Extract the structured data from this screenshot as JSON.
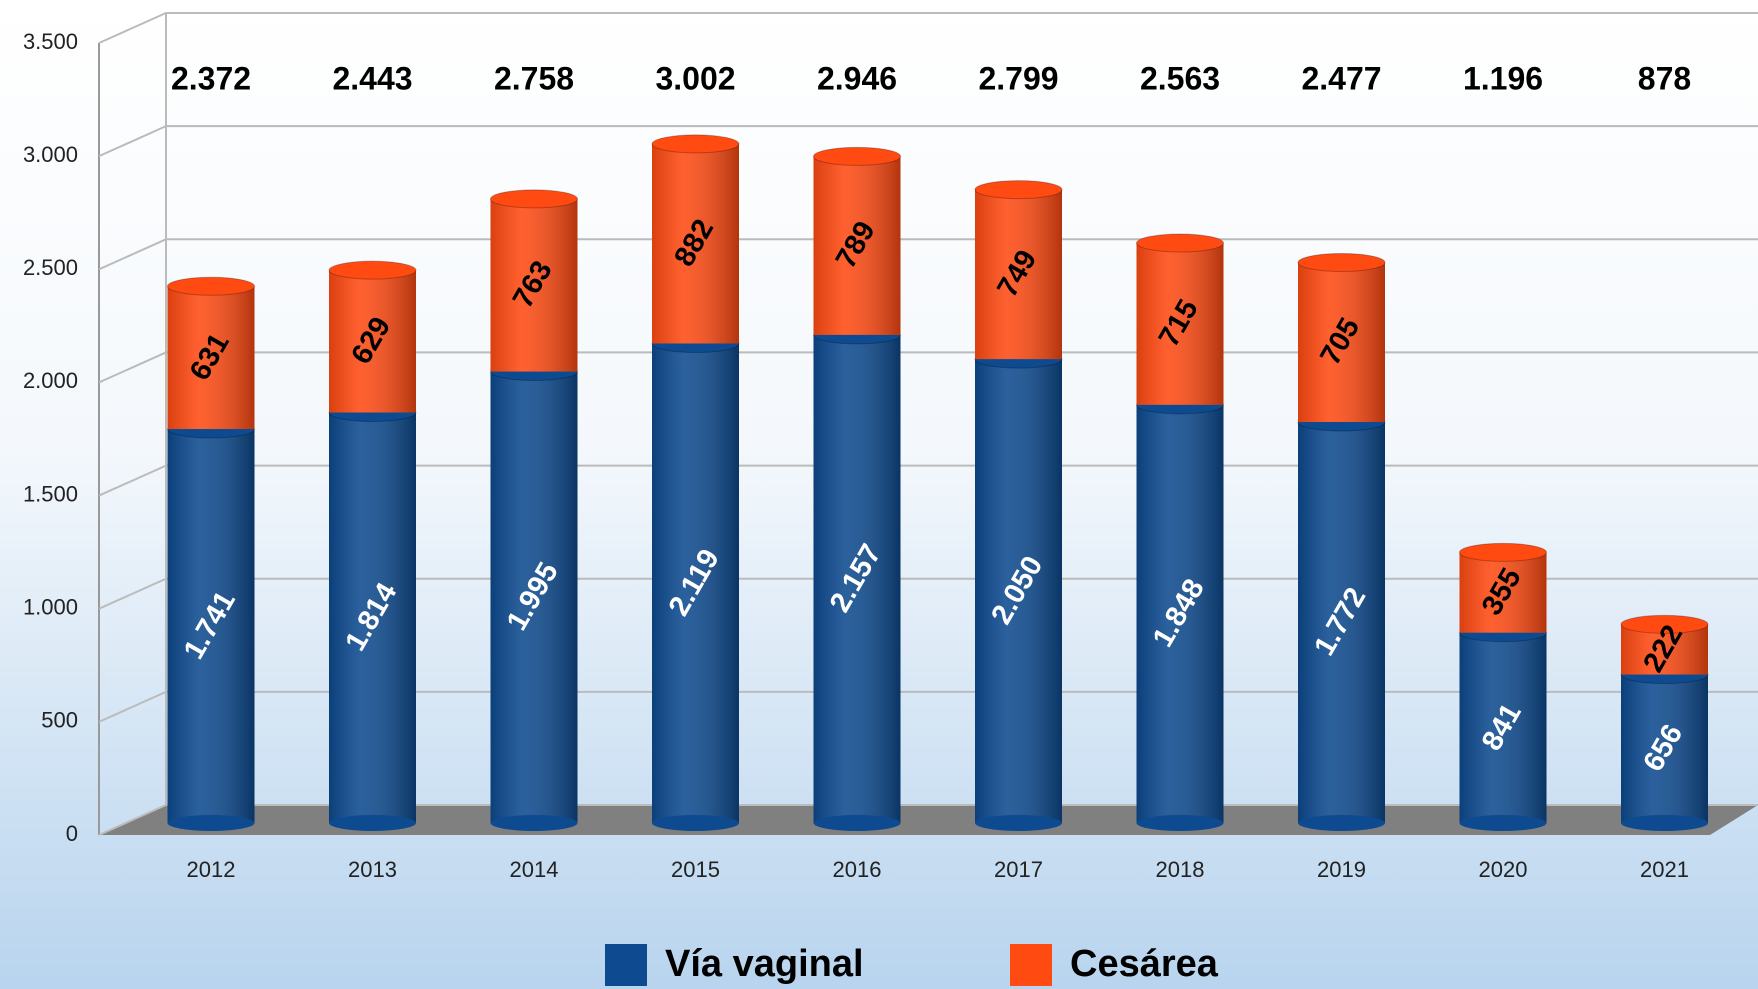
{
  "chart_data": {
    "type": "stacked_bar",
    "categories": [
      "2012",
      "2013",
      "2014",
      "2015",
      "2016",
      "2017",
      "2018",
      "2019",
      "2020",
      "2021"
    ],
    "series": [
      {
        "name": "Vía vaginal",
        "color": "#0d4a8f",
        "values": [
          1741,
          1814,
          1995,
          2119,
          2157,
          2050,
          1848,
          1772,
          841,
          656
        ],
        "value_labels": [
          "1.741",
          "1.814",
          "1.995",
          "2.119",
          "2.157",
          "2.050",
          "1.848",
          "1.772",
          "841",
          "656"
        ]
      },
      {
        "name": "Cesárea",
        "color": "#ff4a12",
        "values": [
          631,
          629,
          763,
          882,
          789,
          749,
          715,
          705,
          355,
          222
        ]
      }
    ],
    "totals": {
      "values": [
        2372,
        2443,
        2758,
        3002,
        2946,
        2799,
        2563,
        2477,
        1196,
        878
      ],
      "value_labels": [
        "2.372",
        "2.443",
        "2.758",
        "3.002",
        "2.946",
        "2.799",
        "2.563",
        "2.477",
        "1.196",
        "878"
      ]
    },
    "ylim": [
      0,
      3500
    ],
    "yticks": [
      0,
      500,
      {
        "value": 1000,
        "label": "1.000"
      },
      {
        "value": 1500,
        "label": "1.500"
      },
      {
        "value": 2000,
        "label": "2.000"
      },
      {
        "value": 2500,
        "label": "2.500"
      },
      {
        "value": 3000,
        "label": "3.000"
      },
      {
        "value": 3500,
        "label": "3.500"
      }
    ],
    "grid": true,
    "legend": "bottom"
  }
}
